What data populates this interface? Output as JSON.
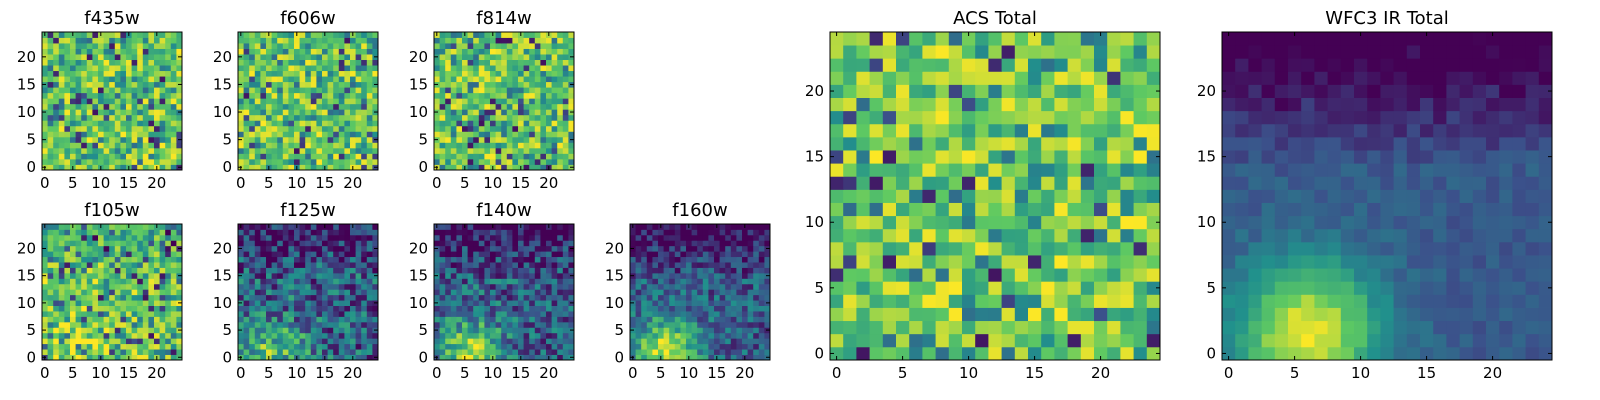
{
  "figure": {
    "colormap": [
      "#440154",
      "#3b528b",
      "#21918c",
      "#5ec962",
      "#fde725"
    ]
  },
  "chart_data": [
    {
      "type": "heatmap",
      "title": "f435w",
      "grid_size": 25,
      "x_ticks": [
        0,
        5,
        10,
        15,
        20
      ],
      "y_ticks": [
        0,
        5,
        10,
        15,
        20
      ],
      "xlim": [
        0,
        24
      ],
      "ylim": [
        0,
        24
      ],
      "noise_level": 0.78,
      "blob": 0.0,
      "dark_top": 0.0
    },
    {
      "type": "heatmap",
      "title": "f606w",
      "grid_size": 25,
      "x_ticks": [
        0,
        5,
        10,
        15,
        20
      ],
      "y_ticks": [
        0,
        5,
        10,
        15,
        20
      ],
      "xlim": [
        0,
        24
      ],
      "ylim": [
        0,
        24
      ],
      "noise_level": 0.76,
      "blob": 0.0,
      "dark_top": 0.0
    },
    {
      "type": "heatmap",
      "title": "f814w",
      "grid_size": 25,
      "x_ticks": [
        0,
        5,
        10,
        15,
        20
      ],
      "y_ticks": [
        0,
        5,
        10,
        15,
        20
      ],
      "xlim": [
        0,
        24
      ],
      "ylim": [
        0,
        24
      ],
      "noise_level": 0.78,
      "blob": 0.0,
      "dark_top": 0.0
    },
    {
      "type": "heatmap",
      "title": "f105w",
      "grid_size": 25,
      "x_ticks": [
        0,
        5,
        10,
        15,
        20
      ],
      "y_ticks": [
        0,
        5,
        10,
        15,
        20
      ],
      "xlim": [
        0,
        24
      ],
      "ylim": [
        0,
        24
      ],
      "noise_level": 0.7,
      "blob": 0.25,
      "dark_top": 0.2
    },
    {
      "type": "heatmap",
      "title": "f125w",
      "grid_size": 25,
      "x_ticks": [
        0,
        5,
        10,
        15,
        20
      ],
      "y_ticks": [
        0,
        5,
        10,
        15,
        20
      ],
      "xlim": [
        0,
        24
      ],
      "ylim": [
        0,
        24
      ],
      "noise_level": 0.58,
      "blob": 0.45,
      "dark_top": 0.3
    },
    {
      "type": "heatmap",
      "title": "f140w",
      "grid_size": 25,
      "x_ticks": [
        0,
        5,
        10,
        15,
        20
      ],
      "y_ticks": [
        0,
        5,
        10,
        15,
        20
      ],
      "xlim": [
        0,
        24
      ],
      "ylim": [
        0,
        24
      ],
      "noise_level": 0.5,
      "blob": 0.6,
      "dark_top": 0.35
    },
    {
      "type": "heatmap",
      "title": "f160w",
      "grid_size": 25,
      "x_ticks": [
        0,
        5,
        10,
        15,
        20
      ],
      "y_ticks": [
        0,
        5,
        10,
        15,
        20
      ],
      "xlim": [
        0,
        24
      ],
      "ylim": [
        0,
        24
      ],
      "noise_level": 0.42,
      "blob": 0.7,
      "dark_top": 0.4
    },
    {
      "type": "heatmap",
      "title": "ACS Total",
      "grid_size": 25,
      "x_ticks": [
        0,
        5,
        10,
        15,
        20
      ],
      "y_ticks": [
        0,
        5,
        10,
        15,
        20
      ],
      "xlim": [
        0,
        24
      ],
      "ylim": [
        0,
        24
      ],
      "noise_level": 0.72,
      "blob": 0.0,
      "dark_top": 0.0
    },
    {
      "type": "heatmap",
      "title": "WFC3 IR Total",
      "grid_size": 25,
      "x_ticks": [
        0,
        5,
        10,
        15,
        20
      ],
      "y_ticks": [
        0,
        5,
        10,
        15,
        20
      ],
      "xlim": [
        0,
        24
      ],
      "ylim": [
        0,
        24
      ],
      "noise_level": 0.12,
      "blob": 0.75,
      "dark_top": 0.45
    }
  ]
}
